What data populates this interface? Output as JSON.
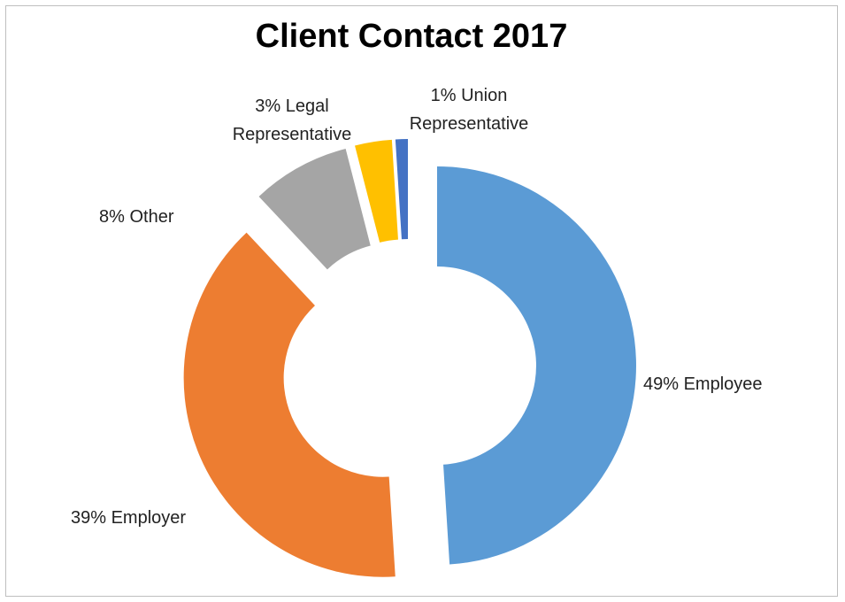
{
  "chart_data": {
    "type": "donut",
    "title": "Client Contact 2017",
    "categories": [
      "Employee",
      "Employer",
      "Other",
      "Legal Representative",
      "Union Representative"
    ],
    "values": [
      49,
      39,
      8,
      3,
      1
    ],
    "value_labels": [
      "49%",
      "39%",
      "8%",
      "3%",
      "1%"
    ],
    "colors": [
      "#5b9bd5",
      "#ed7d31",
      "#a5a5a5",
      "#ffc000",
      "#4472c4"
    ],
    "exploded": true
  }
}
